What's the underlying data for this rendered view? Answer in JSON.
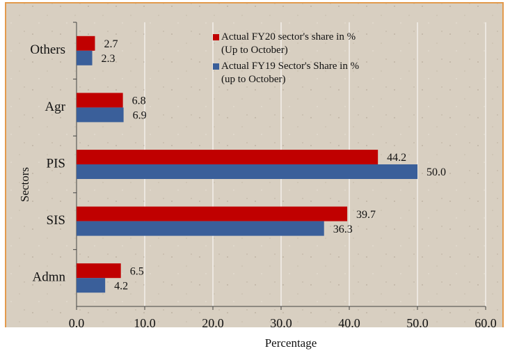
{
  "chart_data": {
    "type": "hbar",
    "xlabel": "Percentage",
    "ylabel": "Sectors",
    "categories": [
      "Others",
      "Agr",
      "PIS",
      "SIS",
      "Admn"
    ],
    "series": [
      {
        "name": "Actual FY20 sector's share in % (Up to October)",
        "color": "#c00000",
        "values": [
          2.7,
          6.8,
          44.2,
          39.7,
          6.5
        ],
        "value_labels": [
          "2.7",
          "6.8",
          "44.2",
          "39.7",
          "6.5"
        ]
      },
      {
        "name": "Actual FY19  Sector's Share in % (up to October)",
        "color": "#3a5f9a",
        "values": [
          2.3,
          6.9,
          50.0,
          36.3,
          4.2
        ],
        "value_labels": [
          "2.3",
          "6.9",
          "50.0",
          "36.3",
          "4.2"
        ]
      }
    ],
    "xlim": [
      0,
      60
    ],
    "xticks": [
      {
        "value": 0,
        "label": "0.0"
      },
      {
        "value": 10,
        "label": "10.0"
      },
      {
        "value": 20,
        "label": "20.0"
      },
      {
        "value": 30,
        "label": "30.0"
      },
      {
        "value": 40,
        "label": "40.0"
      },
      {
        "value": 50,
        "label": "50.0"
      },
      {
        "value": 60,
        "label": "60.0"
      }
    ],
    "grid": true,
    "legend": "top-right"
  }
}
